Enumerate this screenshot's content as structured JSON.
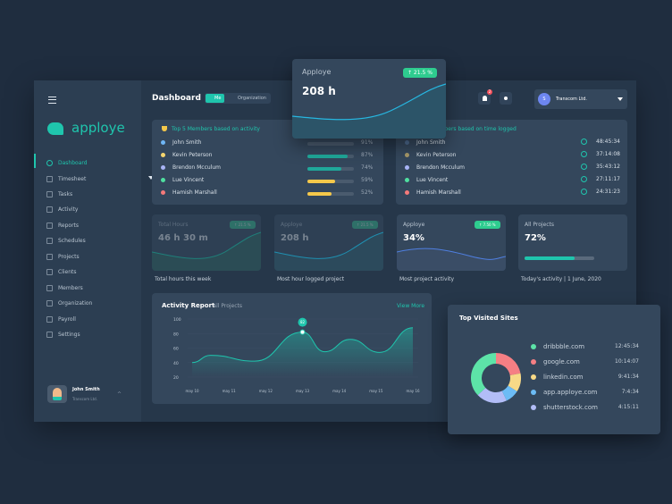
{
  "header": {
    "title": "Dashboard",
    "toggle_me": "Me",
    "toggle_org": "Organization",
    "notif_count": "2",
    "company": "Transcom Ltd.",
    "company_initial": "S"
  },
  "brand": {
    "name": "apploye"
  },
  "sidebar": {
    "items": [
      {
        "label": "Dashboard"
      },
      {
        "label": "Timesheet"
      },
      {
        "label": "Tasks"
      },
      {
        "label": "Activity"
      },
      {
        "label": "Reports"
      },
      {
        "label": "Schedules"
      },
      {
        "label": "Projects"
      },
      {
        "label": "Clients"
      },
      {
        "label": "Members"
      },
      {
        "label": "Organization"
      },
      {
        "label": "Payroll"
      },
      {
        "label": "Settings"
      }
    ],
    "user": {
      "name": "John Smith",
      "company": "Transcom Ltd."
    }
  },
  "top_activity": {
    "title": "Top 5 Members based on activity",
    "members": [
      {
        "name": "John Smith",
        "pct": "91%",
        "value": 91,
        "color": "#6fb6f5",
        "bar": "#4a5b6e"
      },
      {
        "name": "Kevin Peterson",
        "pct": "87%",
        "value": 87,
        "color": "#f5d66f",
        "bar": "#1fa89a"
      },
      {
        "name": "Brendon Mcculum",
        "pct": "74%",
        "value": 74,
        "color": "#a8b4f5",
        "bar": "#1fa89a"
      },
      {
        "name": "Lue Vincent",
        "pct": "59%",
        "value": 59,
        "color": "#4fe0a0",
        "bar": "#f5c84a"
      },
      {
        "name": "Hamish Marshall",
        "pct": "52%",
        "value": 52,
        "color": "#f57a7a",
        "bar": "#f5c84a"
      }
    ]
  },
  "top_time": {
    "title": "Top 5 Members based on time logged",
    "members": [
      {
        "name": "John Smith",
        "time": "48:45:34",
        "color": "#4d6a8f"
      },
      {
        "name": "Kevin Peterson",
        "time": "37:14:08",
        "color": "#a89a6a"
      },
      {
        "name": "Brendon Mcculum",
        "time": "35:43:12",
        "color": "#a8b4f5"
      },
      {
        "name": "Lue Vincent",
        "time": "27:11:17",
        "color": "#4fe0a0"
      },
      {
        "name": "Hamish Marshall",
        "time": "24:31:23",
        "color": "#f57a7a"
      }
    ]
  },
  "stats": [
    {
      "label": "Total Hours",
      "value": "46 h 30 m",
      "badge": "↑ 21.5 %",
      "caption": "Total hours this week"
    },
    {
      "label": "Apploye",
      "value": "208 h",
      "badge": "↑ 21.5 %",
      "caption": "Most hour logged project"
    },
    {
      "label": "Apploye",
      "value": "34%",
      "badge": "↑ 7.50 %",
      "caption": "Most project activity"
    },
    {
      "label": "All Projects",
      "value": "72%",
      "progress": 72,
      "caption": "Today's activity | 1 June, 2020"
    }
  ],
  "popup": {
    "label": "Apploye",
    "value": "208 h",
    "badge": "↑ 21.5 %"
  },
  "activity": {
    "title": "Activity Report",
    "filter": "All Projects",
    "link": "View More",
    "marker": "82"
  },
  "chart_data": {
    "type": "area",
    "title": "Activity Report",
    "ylim": [
      20,
      100
    ],
    "yticks": [
      "100",
      "80",
      "60",
      "40",
      "20"
    ],
    "categories": [
      "may 10",
      "may 11",
      "may 12",
      "may 13",
      "may 14",
      "may 15",
      "may 16"
    ],
    "x": [
      0,
      0.5,
      1.7,
      3,
      3.6,
      4.3,
      5.1,
      6
    ],
    "y": [
      40,
      50,
      42,
      82,
      55,
      72,
      54,
      88
    ]
  },
  "sites": {
    "title": "Top Visited Sites",
    "items": [
      {
        "name": "dribbble.com",
        "time": "12:45:34",
        "color": "#5de3a8",
        "share": 37
      },
      {
        "name": "google.com",
        "time": "10:14:07",
        "color": "#f57f84",
        "share": 22
      },
      {
        "name": "linkedin.com",
        "time": "9:41:34",
        "color": "#f7d987",
        "share": 12
      },
      {
        "name": "app.apploye.com",
        "time": "7:4:34",
        "color": "#6cbcf5",
        "share": 9
      },
      {
        "name": "shutterstock.com",
        "time": "4:15:11",
        "color": "#b2bdf7",
        "share": 20
      }
    ]
  }
}
